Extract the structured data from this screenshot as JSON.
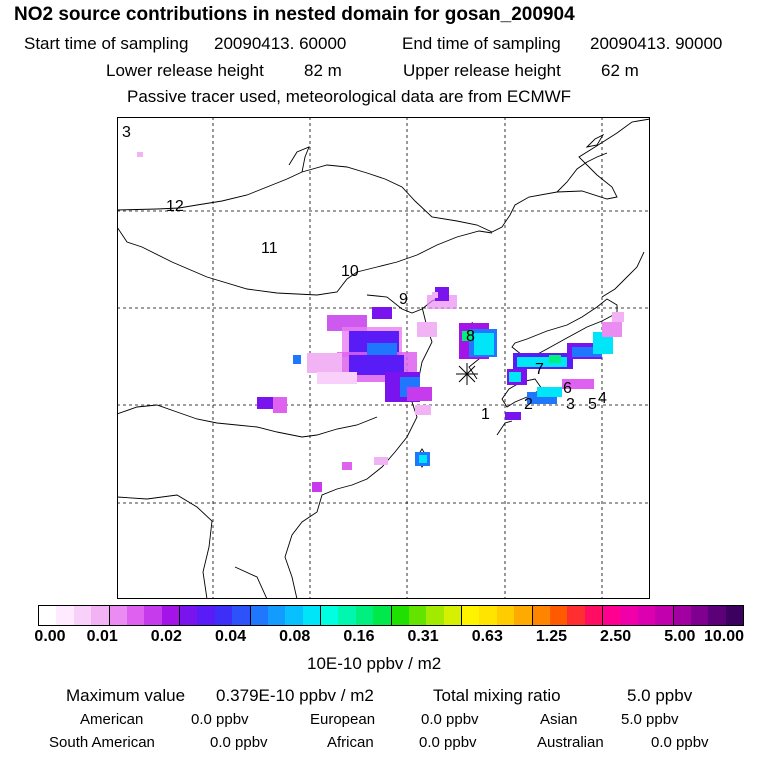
{
  "title": "NO2 source contributions in nested domain for gosan_200904",
  "header": {
    "start_label": "Start time of sampling",
    "start_value": "20090413. 60000",
    "end_label": "End time of sampling",
    "end_value": "20090413. 90000",
    "lower_label": "Lower release height",
    "lower_value": "82 m",
    "upper_label": "Upper release height",
    "upper_value": "62 m",
    "note": "Passive tracer used, meteorological data are from ECMWF"
  },
  "map": {
    "region_labels": [
      "3",
      "12",
      "11",
      "10",
      "9",
      "8",
      "7",
      "6",
      "1",
      "2",
      "3",
      "5",
      "4"
    ],
    "receptor_marker": "asterisk"
  },
  "colorbar": {
    "colors": [
      "#ffffff",
      "#ffeaff",
      "#f9d0f9",
      "#f2b3f5",
      "#ea8cf2",
      "#de62ef",
      "#c63cec",
      "#a413e8",
      "#7a14ee",
      "#5a1cf6",
      "#3e2ff8",
      "#2d52fb",
      "#1e77fc",
      "#139cfd",
      "#08c0fd",
      "#00e6f8",
      "#00ffe0",
      "#00f7b0",
      "#00f080",
      "#00e94a",
      "#1fe000",
      "#62e400",
      "#a2ea00",
      "#d5f000",
      "#fff300",
      "#ffe400",
      "#ffcc00",
      "#ffaa00",
      "#ff8400",
      "#ff5a00",
      "#ff2e30",
      "#ff0d62",
      "#ff0090",
      "#f000a8",
      "#dd00b0",
      "#c300ad",
      "#a300a2",
      "#7f0090",
      "#5c007a",
      "#3c005e"
    ],
    "ticks": [
      "0.00",
      "0.01",
      "0.02",
      "0.04",
      "0.08",
      "0.16",
      "0.31",
      "0.63",
      "1.25",
      "2.50",
      "5.00",
      "10.00"
    ],
    "units": "10E-10 ppbv / m2"
  },
  "footer": {
    "max_label": "Maximum value",
    "max_value": "0.379E-10 ppbv / m2",
    "total_label": "Total mixing ratio",
    "total_value": "5.0 ppbv",
    "regions": [
      {
        "name": "American",
        "value": "0.0 ppbv"
      },
      {
        "name": "European",
        "value": "0.0 ppbv"
      },
      {
        "name": "Asian",
        "value": "5.0 ppbv"
      },
      {
        "name": "South American",
        "value": "0.0 ppbv"
      },
      {
        "name": "African",
        "value": "0.0 ppbv"
      },
      {
        "name": "Australian",
        "value": "0.0 ppbv"
      }
    ]
  }
}
